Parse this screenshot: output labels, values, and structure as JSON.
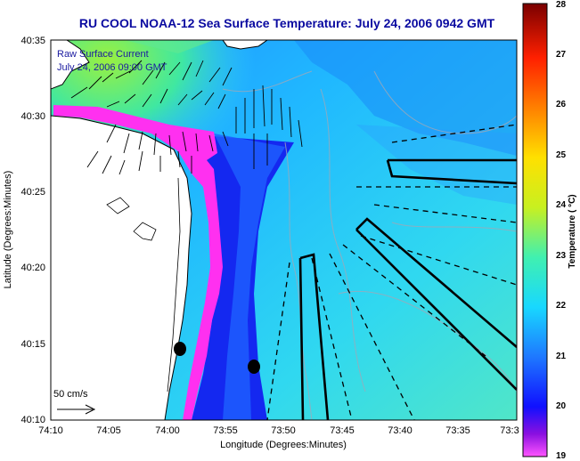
{
  "title": "RU COOL  NOAA-12  Sea Surface Temperature:  July 24, 2006 0942 GMT",
  "legend": {
    "line1": "Raw Surface Current",
    "line2": "July 24, 2006 09:00 GMT",
    "scale_label": "50 cm/s"
  },
  "map": {
    "xlabel": "Longitude (Degrees:Minutes)",
    "ylabel": "Latitude (Degrees:Minutes)",
    "lon_ticks": [
      "74:10",
      "74:05",
      "74:00",
      "73:55",
      "73:50",
      "73:45",
      "73:40",
      "73:35",
      "73:3"
    ],
    "lat_ticks": [
      "40:35",
      "40:30",
      "40:25",
      "40:20",
      "40:15",
      "40:10"
    ],
    "extent": {
      "lon": [
        "74:10",
        "73:30"
      ],
      "lat": [
        "40:10",
        "40:35"
      ]
    }
  },
  "colorbar": {
    "label": "Temperature ( °C)",
    "ticks": [
      "28",
      "27",
      "26",
      "25",
      "24",
      "23",
      "22",
      "21",
      "20",
      "19"
    ],
    "range": [
      19,
      28
    ],
    "stops": [
      "#ff55ff",
      "#6a00d8",
      "#1010ff",
      "#1e78ff",
      "#18d8ff",
      "#40f0b0",
      "#c8f020",
      "#ffe000",
      "#ff8000",
      "#ff2000",
      "#c00000",
      "#7a0000"
    ]
  },
  "colors": {
    "land": "#ffffff",
    "water_warm": "#20c8ff",
    "coastal_cold": "#1428f0",
    "upwelling_edge": "#ff30f0"
  }
}
